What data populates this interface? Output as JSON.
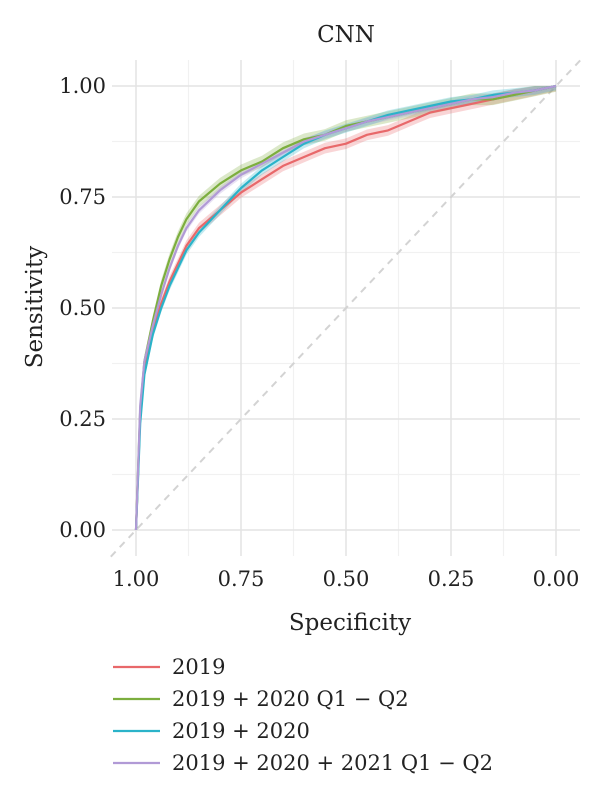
{
  "chart_data": {
    "type": "line",
    "title": "CNN",
    "xlabel": "Specificity",
    "ylabel": "Sensitivity",
    "x_reversed": true,
    "xlim": [
      1.0,
      0.0
    ],
    "ylim": [
      0.0,
      1.0
    ],
    "xticks": [
      "1.00",
      "0.75",
      "0.50",
      "0.25",
      "0.00"
    ],
    "yticks": [
      "0.00",
      "0.25",
      "0.50",
      "0.75",
      "1.00"
    ],
    "grid": true,
    "reference_diagonal": true,
    "legend_position": "bottom-left",
    "series": [
      {
        "name": "2019",
        "color": "#e8686a",
        "band": 0.012,
        "points": [
          [
            1.0,
            0.0
          ],
          [
            0.99,
            0.26
          ],
          [
            0.98,
            0.37
          ],
          [
            0.96,
            0.45
          ],
          [
            0.94,
            0.51
          ],
          [
            0.92,
            0.56
          ],
          [
            0.9,
            0.6
          ],
          [
            0.88,
            0.64
          ],
          [
            0.85,
            0.68
          ],
          [
            0.8,
            0.72
          ],
          [
            0.75,
            0.76
          ],
          [
            0.7,
            0.79
          ],
          [
            0.65,
            0.82
          ],
          [
            0.6,
            0.84
          ],
          [
            0.55,
            0.86
          ],
          [
            0.5,
            0.87
          ],
          [
            0.45,
            0.89
          ],
          [
            0.4,
            0.9
          ],
          [
            0.35,
            0.92
          ],
          [
            0.3,
            0.94
          ],
          [
            0.25,
            0.95
          ],
          [
            0.2,
            0.96
          ],
          [
            0.15,
            0.97
          ],
          [
            0.1,
            0.98
          ],
          [
            0.05,
            0.99
          ],
          [
            0.0,
            1.0
          ]
        ]
      },
      {
        "name": "2019 + 2020 Q1 − Q2",
        "color": "#7cae3e",
        "band": 0.013,
        "points": [
          [
            1.0,
            0.0
          ],
          [
            0.99,
            0.27
          ],
          [
            0.98,
            0.38
          ],
          [
            0.96,
            0.47
          ],
          [
            0.94,
            0.55
          ],
          [
            0.92,
            0.61
          ],
          [
            0.9,
            0.66
          ],
          [
            0.88,
            0.7
          ],
          [
            0.85,
            0.74
          ],
          [
            0.8,
            0.78
          ],
          [
            0.75,
            0.81
          ],
          [
            0.7,
            0.83
          ],
          [
            0.65,
            0.86
          ],
          [
            0.6,
            0.88
          ],
          [
            0.55,
            0.89
          ],
          [
            0.5,
            0.91
          ],
          [
            0.45,
            0.92
          ],
          [
            0.4,
            0.93
          ],
          [
            0.35,
            0.94
          ],
          [
            0.3,
            0.95
          ],
          [
            0.25,
            0.96
          ],
          [
            0.2,
            0.97
          ],
          [
            0.15,
            0.97
          ],
          [
            0.1,
            0.98
          ],
          [
            0.05,
            0.99
          ],
          [
            0.0,
            1.0
          ]
        ]
      },
      {
        "name": "2019 + 2020",
        "color": "#2ab3c9",
        "band": 0.01,
        "points": [
          [
            1.0,
            0.0
          ],
          [
            0.99,
            0.24
          ],
          [
            0.98,
            0.35
          ],
          [
            0.96,
            0.44
          ],
          [
            0.94,
            0.5
          ],
          [
            0.92,
            0.55
          ],
          [
            0.9,
            0.59
          ],
          [
            0.88,
            0.63
          ],
          [
            0.85,
            0.67
          ],
          [
            0.8,
            0.72
          ],
          [
            0.75,
            0.77
          ],
          [
            0.7,
            0.81
          ],
          [
            0.65,
            0.84
          ],
          [
            0.6,
            0.87
          ],
          [
            0.55,
            0.89
          ],
          [
            0.5,
            0.905
          ],
          [
            0.45,
            0.92
          ],
          [
            0.4,
            0.935
          ],
          [
            0.35,
            0.945
          ],
          [
            0.3,
            0.955
          ],
          [
            0.25,
            0.965
          ],
          [
            0.2,
            0.97
          ],
          [
            0.15,
            0.98
          ],
          [
            0.1,
            0.985
          ],
          [
            0.05,
            0.99
          ],
          [
            0.0,
            1.0
          ]
        ]
      },
      {
        "name": "2019 + 2020 + 2021 Q1 − Q2",
        "color": "#b19ad6",
        "band": 0.008,
        "points": [
          [
            1.0,
            0.0
          ],
          [
            0.99,
            0.28
          ],
          [
            0.98,
            0.38
          ],
          [
            0.96,
            0.46
          ],
          [
            0.94,
            0.53
          ],
          [
            0.92,
            0.59
          ],
          [
            0.9,
            0.64
          ],
          [
            0.88,
            0.68
          ],
          [
            0.85,
            0.72
          ],
          [
            0.8,
            0.765
          ],
          [
            0.75,
            0.8
          ],
          [
            0.7,
            0.825
          ],
          [
            0.65,
            0.85
          ],
          [
            0.6,
            0.875
          ],
          [
            0.55,
            0.89
          ],
          [
            0.5,
            0.905
          ],
          [
            0.45,
            0.92
          ],
          [
            0.4,
            0.93
          ],
          [
            0.35,
            0.94
          ],
          [
            0.3,
            0.95
          ],
          [
            0.25,
            0.96
          ],
          [
            0.2,
            0.97
          ],
          [
            0.15,
            0.975
          ],
          [
            0.1,
            0.985
          ],
          [
            0.05,
            0.99
          ],
          [
            0.0,
            1.0
          ]
        ]
      }
    ]
  }
}
